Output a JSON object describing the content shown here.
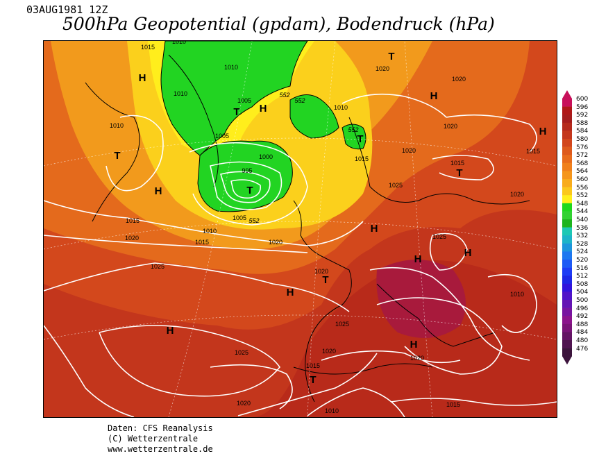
{
  "header": {
    "date": "03AUG1981 12Z",
    "title": "500hPa Geopotential (gpdam), Bodendruck (hPa)"
  },
  "footer": {
    "line1": "Daten: CFS Reanalysis",
    "line2": "(C) Wetterzentrale",
    "line3": "www.wetterzentrale.de"
  },
  "colorbar": {
    "labels": [
      "600",
      "596",
      "592",
      "588",
      "584",
      "580",
      "576",
      "572",
      "568",
      "564",
      "560",
      "556",
      "552",
      "548",
      "544",
      "540",
      "536",
      "532",
      "528",
      "524",
      "520",
      "516",
      "512",
      "508",
      "504",
      "500",
      "496",
      "492",
      "488",
      "484",
      "480",
      "476"
    ],
    "colors": [
      "#c8105a",
      "#b01818",
      "#a51d1d",
      "#b52a1c",
      "#c4371c",
      "#d2461c",
      "#de5a1c",
      "#e86c1c",
      "#f0801c",
      "#f5961c",
      "#f8ac1c",
      "#fbc81c",
      "#ffef1c",
      "#1ed81e",
      "#32d232",
      "#1eb41e",
      "#1ec8b4",
      "#1eb4c8",
      "#1e96dc",
      "#1e78f0",
      "#1e5af5",
      "#1e3cf5",
      "#1e28e6",
      "#3214dc",
      "#5014c8",
      "#6414b4",
      "#7814a0",
      "#8c148c",
      "#7a1478",
      "#641464",
      "#501450",
      "#3c143c"
    ]
  },
  "map": {
    "pressure_labels": [
      {
        "text": "1015"
      },
      {
        "text": "1010"
      },
      {
        "text": "1010"
      },
      {
        "text": "1020"
      },
      {
        "text": "1010"
      },
      {
        "text": "1005"
      },
      {
        "text": "1010"
      },
      {
        "text": "1005"
      },
      {
        "text": "1000"
      },
      {
        "text": "995"
      },
      {
        "text": "1005"
      },
      {
        "text": "1010"
      },
      {
        "text": "1015"
      },
      {
        "text": "1015"
      },
      {
        "text": "1020"
      },
      {
        "text": "1020"
      },
      {
        "text": "1010"
      },
      {
        "text": "1020"
      },
      {
        "text": "1020"
      },
      {
        "text": "1015"
      },
      {
        "text": "1020"
      },
      {
        "text": "1025"
      },
      {
        "text": "1015"
      },
      {
        "text": "1020"
      },
      {
        "text": "1025"
      },
      {
        "text": "1025"
      },
      {
        "text": "1010"
      },
      {
        "text": "1025"
      },
      {
        "text": "1025"
      },
      {
        "text": "1020"
      },
      {
        "text": "1015"
      },
      {
        "text": "1020"
      },
      {
        "text": "1020"
      },
      {
        "text": "1010"
      },
      {
        "text": "1015"
      },
      {
        "text": "1015"
      },
      {
        "text": "1020"
      }
    ],
    "geopotential_labels": [
      {
        "text": "552"
      },
      {
        "text": "552"
      },
      {
        "text": "552"
      },
      {
        "text": "552"
      }
    ],
    "pressure_centers": [
      {
        "text": "H"
      },
      {
        "text": "T"
      },
      {
        "text": "H"
      },
      {
        "text": "T"
      },
      {
        "text": "H"
      },
      {
        "text": "T"
      },
      {
        "text": "T"
      },
      {
        "text": "H"
      },
      {
        "text": "T"
      },
      {
        "text": "H"
      },
      {
        "text": "H"
      },
      {
        "text": "T"
      },
      {
        "text": "H"
      },
      {
        "text": "T"
      },
      {
        "text": "H"
      },
      {
        "text": "H"
      },
      {
        "text": "H"
      },
      {
        "text": "T"
      },
      {
        "text": "H"
      }
    ]
  }
}
